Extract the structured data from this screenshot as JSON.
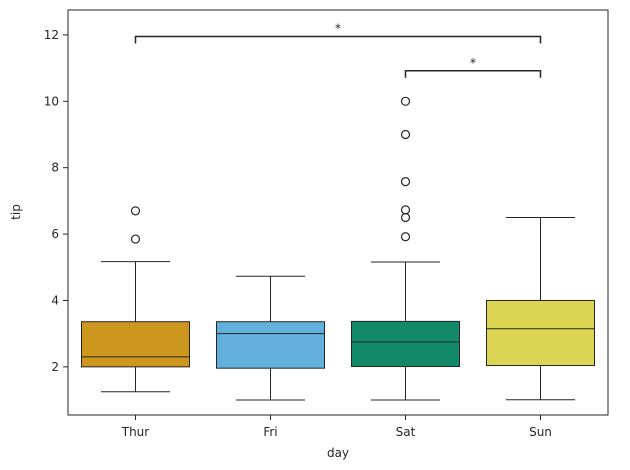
{
  "chart_data": {
    "type": "box",
    "xlabel": "day",
    "ylabel": "tip",
    "categories": [
      "Thur",
      "Fri",
      "Sat",
      "Sun"
    ],
    "colors": [
      "#CC961F",
      "#64B0DC",
      "#128A6A",
      "#DCD554"
    ],
    "ylim": [
      0.55,
      12.75
    ],
    "yticks": [
      2,
      4,
      6,
      8,
      10,
      12
    ],
    "grid": false,
    "boxes": [
      {
        "category": "Thur",
        "whisker_low": 1.25,
        "q1": 2.0,
        "median": 2.3,
        "q3": 3.36,
        "whisker_high": 5.17,
        "outliers": [
          5.85,
          6.7
        ]
      },
      {
        "category": "Fri",
        "whisker_low": 1.0,
        "q1": 1.96,
        "median": 3.0,
        "q3": 3.36,
        "whisker_high": 4.73,
        "outliers": []
      },
      {
        "category": "Sat",
        "whisker_low": 1.0,
        "q1": 2.01,
        "median": 2.75,
        "q3": 3.37,
        "whisker_high": 5.16,
        "outliers": [
          5.92,
          6.5,
          6.73,
          7.58,
          9.0,
          10.0
        ]
      },
      {
        "category": "Sun",
        "whisker_low": 1.01,
        "q1": 2.04,
        "median": 3.15,
        "q3": 4.0,
        "whisker_high": 6.5,
        "outliers": []
      }
    ],
    "annotations": [
      {
        "from": "Thur",
        "to": "Sun",
        "y": 11.95,
        "text": "*"
      },
      {
        "from": "Sat",
        "to": "Sun",
        "y": 10.92,
        "text": "*"
      }
    ]
  }
}
